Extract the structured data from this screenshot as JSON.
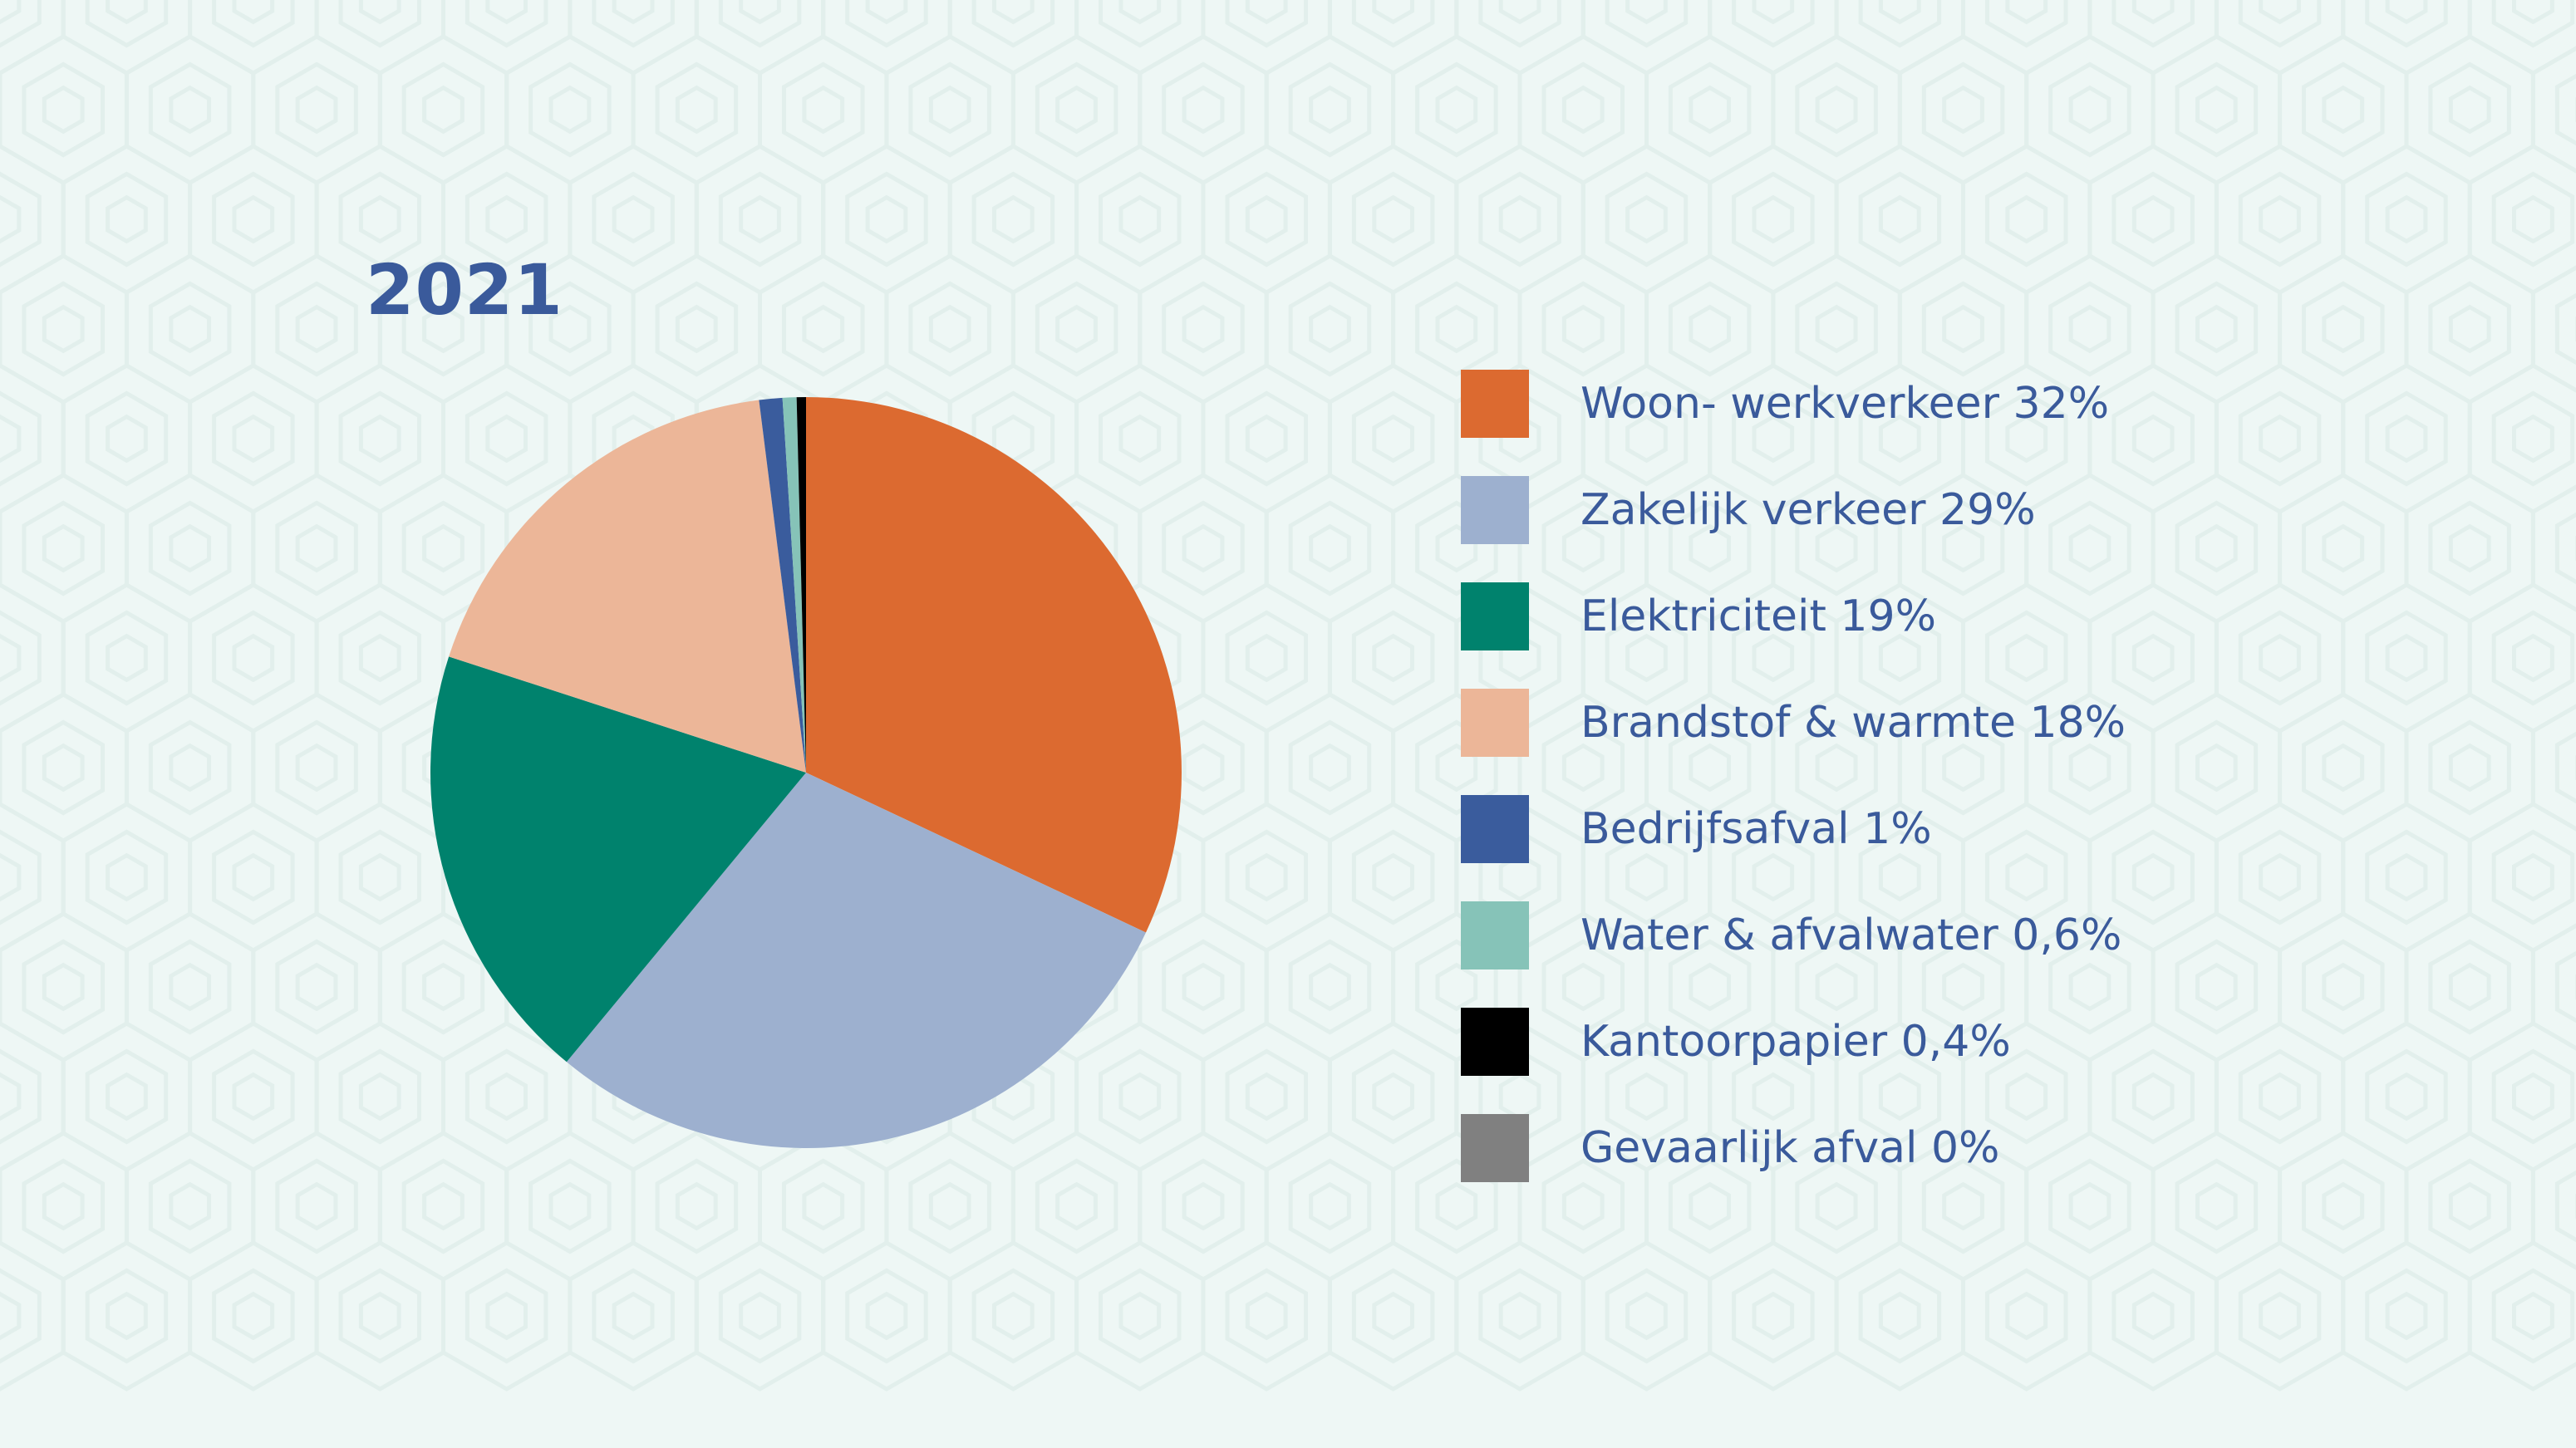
{
  "chart_data": {
    "type": "pie",
    "title": "2021",
    "legend_position": "right",
    "slices": [
      {
        "label": "Woon- werkverkeer 32%",
        "value": 32,
        "color": "#dc6a30"
      },
      {
        "label": "Zakelijk verkeer 29%",
        "value": 29,
        "color": "#9db0cf"
      },
      {
        "label": "Elektriciteit 19%",
        "value": 19,
        "color": "#00826d"
      },
      {
        "label": "Brandstof & warmte 18%",
        "value": 18,
        "color": "#ecb698"
      },
      {
        "label": "Bedrijfsafval 1%",
        "value": 1,
        "color": "#3a5c9d"
      },
      {
        "label": "Water & afvalwater 0,6%",
        "value": 0.6,
        "color": "#86c3b8"
      },
      {
        "label": "Kantoorpapier 0,4%",
        "value": 0.4,
        "color": "#000000"
      },
      {
        "label": "Gevaarlijk afval 0%",
        "value": 0,
        "color": "#808080"
      }
    ]
  }
}
